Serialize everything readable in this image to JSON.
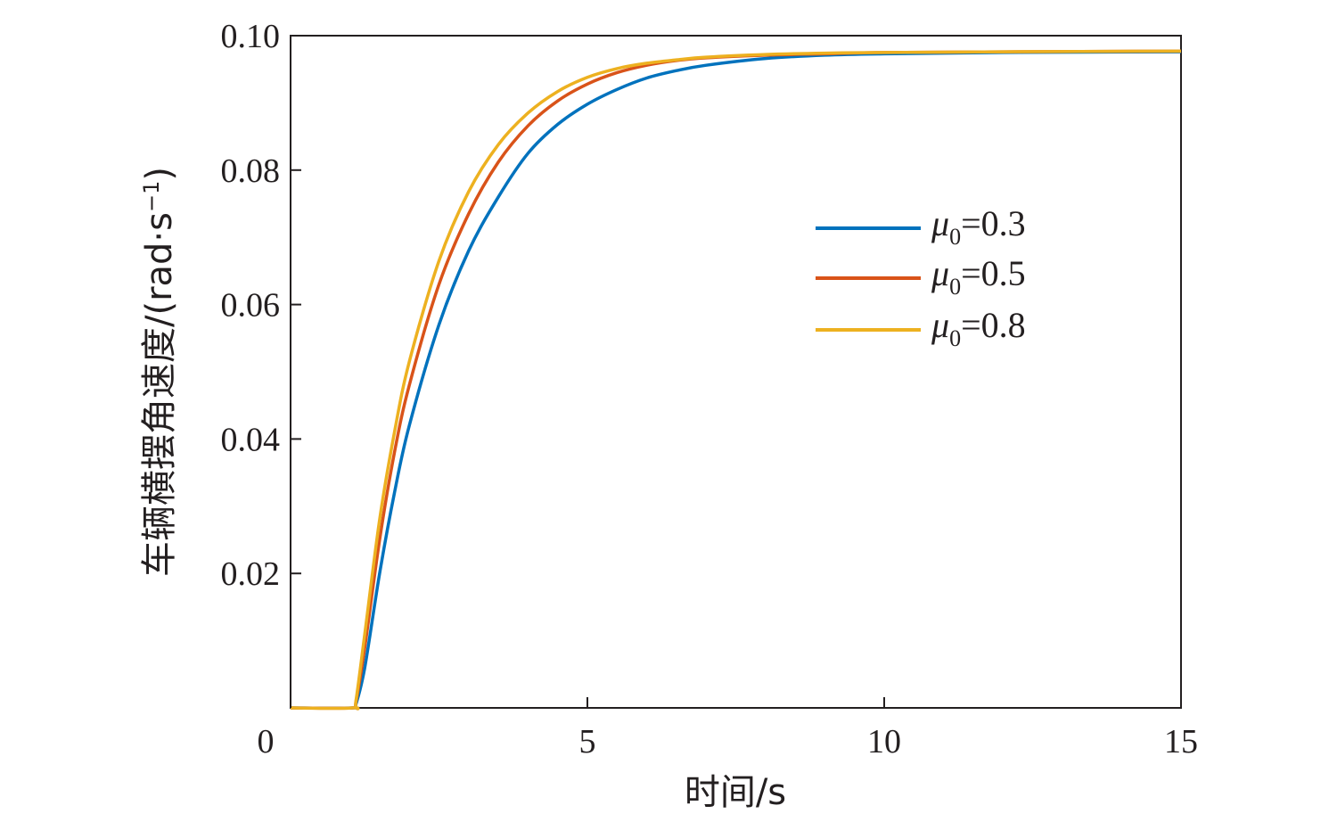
{
  "chart_data": {
    "type": "line",
    "xlabel": "时间/s",
    "ylabel_main": "车辆横摆角速度/(rad",
    "ylabel_dot": "·",
    "ylabel_s": "s",
    "ylabel_sup": "−1",
    "ylabel_close": ")",
    "xlim": [
      0,
      15
    ],
    "ylim": [
      0,
      0.1
    ],
    "xticks": [
      "0",
      "5",
      "10",
      "15"
    ],
    "yticks": [
      "0.02",
      "0.04",
      "0.06",
      "0.08",
      "0.10"
    ],
    "grid": false,
    "legend_position": "center-right",
    "legend_symbol": "μ",
    "legend_sub": "0",
    "series": [
      {
        "name": "μ0=0.3",
        "value_text": "=0.3",
        "color": "#0072bd",
        "x": [
          0,
          1.05,
          1.1,
          1.25,
          1.5,
          1.75,
          2.0,
          2.5,
          3.0,
          3.5,
          4.0,
          4.5,
          5.0,
          5.5,
          6.0,
          6.5,
          7.0,
          8.0,
          9.0,
          10.0,
          12.0,
          15.0
        ],
        "y": [
          0,
          0,
          0.0005,
          0.006,
          0.02,
          0.032,
          0.042,
          0.057,
          0.068,
          0.076,
          0.0825,
          0.0868,
          0.0898,
          0.092,
          0.0937,
          0.0948,
          0.0956,
          0.0966,
          0.0971,
          0.0973,
          0.0975,
          0.0976
        ]
      },
      {
        "name": "μ0=0.5",
        "value_text": "=0.5",
        "color": "#d95319",
        "x": [
          0,
          1.05,
          1.1,
          1.25,
          1.5,
          1.75,
          2.0,
          2.5,
          3.0,
          3.5,
          4.0,
          4.5,
          5.0,
          5.5,
          6.0,
          6.5,
          7.0,
          8.0,
          9.0,
          10.0,
          12.0,
          15.0
        ],
        "y": [
          0,
          0,
          0.0008,
          0.009,
          0.025,
          0.038,
          0.048,
          0.063,
          0.0735,
          0.0812,
          0.0866,
          0.0903,
          0.0928,
          0.0945,
          0.0956,
          0.0963,
          0.0967,
          0.0971,
          0.0973,
          0.0975,
          0.0976,
          0.0977
        ]
      },
      {
        "name": "μ0=0.8",
        "value_text": "=0.8",
        "color": "#edb120",
        "x": [
          0,
          1.05,
          1.1,
          1.25,
          1.5,
          1.75,
          2.0,
          2.5,
          3.0,
          3.5,
          4.0,
          4.5,
          5.0,
          5.5,
          6.0,
          6.5,
          7.0,
          8.0,
          9.0,
          10.0,
          12.0,
          15.0
        ],
        "y": [
          0,
          0,
          0.001,
          0.011,
          0.028,
          0.041,
          0.0515,
          0.0665,
          0.0768,
          0.0838,
          0.0885,
          0.0917,
          0.0938,
          0.0951,
          0.0959,
          0.0964,
          0.0968,
          0.0972,
          0.0974,
          0.0975,
          0.0976,
          0.0977
        ]
      }
    ]
  }
}
